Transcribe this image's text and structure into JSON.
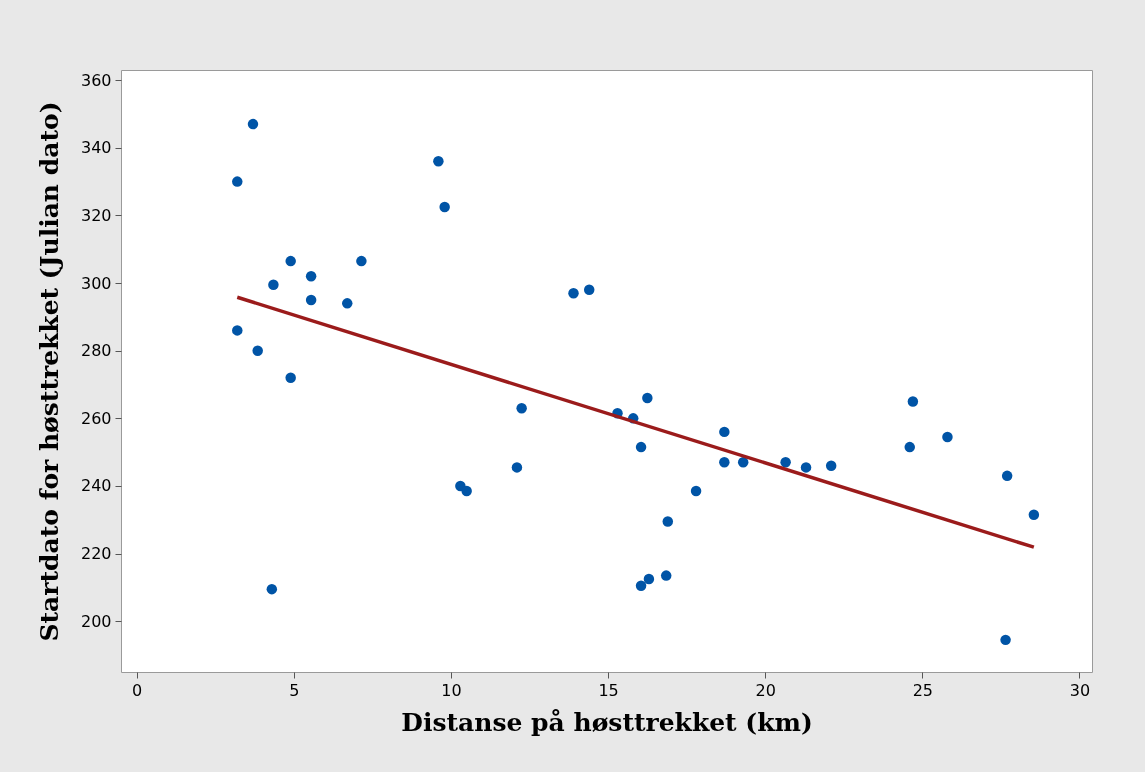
{
  "chart_data": {
    "type": "scatter",
    "xlabel": "Distanse på høsttrekket (km)",
    "ylabel": "Startdato for høsttrekket (Julian dato)",
    "xlim": [
      -0.5,
      30.4
    ],
    "ylim": [
      185,
      363
    ],
    "xticks": [
      0,
      5,
      10,
      15,
      20,
      25,
      30
    ],
    "yticks": [
      200,
      220,
      240,
      260,
      280,
      300,
      320,
      340,
      360
    ],
    "grid": false,
    "marker": "circle",
    "series": [
      {
        "color": "#0054a6",
        "x": [
          3.2,
          3.7,
          3.2,
          3.85,
          4.3,
          4.35,
          4.9,
          4.9,
          5.55,
          5.55,
          6.7,
          7.15,
          9.6,
          9.8,
          10.3,
          10.5,
          12.1,
          12.25,
          13.9,
          14.4,
          15.3,
          15.8,
          16.25,
          16.05,
          16.05,
          16.3,
          16.85,
          16.9,
          17.8,
          18.7,
          18.7,
          19.3,
          20.65,
          21.3,
          22.1,
          24.6,
          24.7,
          25.8,
          27.7,
          27.65,
          28.55
        ],
        "values": [
          330,
          347,
          286,
          280,
          209.5,
          299.5,
          306.5,
          272,
          302,
          295,
          294,
          306.5,
          336,
          322.5,
          240,
          238.5,
          245.5,
          263,
          297,
          298,
          261.5,
          260,
          266,
          251.5,
          210.5,
          212.5,
          213.5,
          229.5,
          238.5,
          256,
          247,
          247,
          247,
          245.5,
          246,
          251.5,
          265,
          254.5,
          243,
          194.5,
          231.5
        ]
      },
      {
        "type": "line",
        "color": "#9b1b1b",
        "line_style": "solid",
        "marker": "none",
        "x": [
          3.2,
          28.55
        ],
        "values": [
          295.8,
          221.9
        ]
      }
    ]
  }
}
